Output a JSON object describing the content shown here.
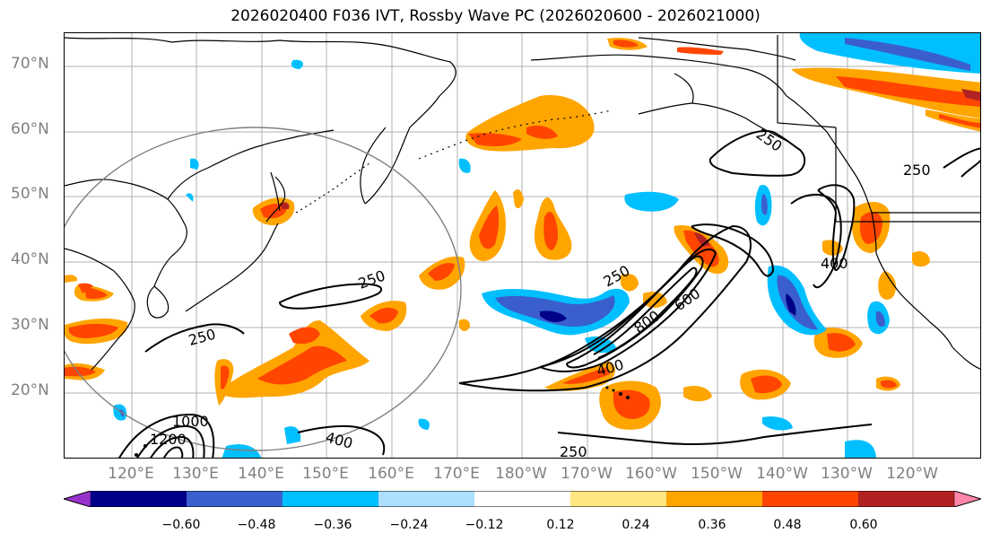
{
  "title": "2026020400 F036 IVT, Rossby Wave PC (2026020600 - 2026021000)",
  "lat_labels": [
    "70°N",
    "60°N",
    "50°N",
    "40°N",
    "30°N",
    "20°N"
  ],
  "lon_labels": [
    "120°E",
    "130°E",
    "140°E",
    "150°E",
    "160°E",
    "170°E",
    "180°W",
    "170°W",
    "160°W",
    "150°W",
    "140°W",
    "130°W",
    "120°W"
  ],
  "contour_labels": [
    "250",
    "250",
    "250",
    "250",
    "250",
    "250",
    "400",
    "400",
    "400",
    "600",
    "800",
    "1000",
    "1200"
  ],
  "colorbar": {
    "ticks": [
      "−0.60",
      "−0.48",
      "−0.36",
      "−0.24",
      "−0.12",
      "0.12",
      "0.24",
      "0.36",
      "0.48",
      "0.60"
    ],
    "colors": [
      "#9932CC",
      "#00008B",
      "#3A5FCD",
      "#00BFFF",
      "#ADDFFF",
      "#FFFFFF",
      "#FFE680",
      "#FFA500",
      "#FF4500",
      "#B22222",
      "#FF88AA"
    ]
  },
  "colors": {
    "neg_outer": "#00BFFF",
    "neg_mid": "#3A5FCD",
    "neg_core": "#00008B",
    "pos_outer": "#FFA500",
    "pos_mid": "#FF4500",
    "pos_core": "#B22222",
    "pos_fringe": "#FFE680"
  }
}
